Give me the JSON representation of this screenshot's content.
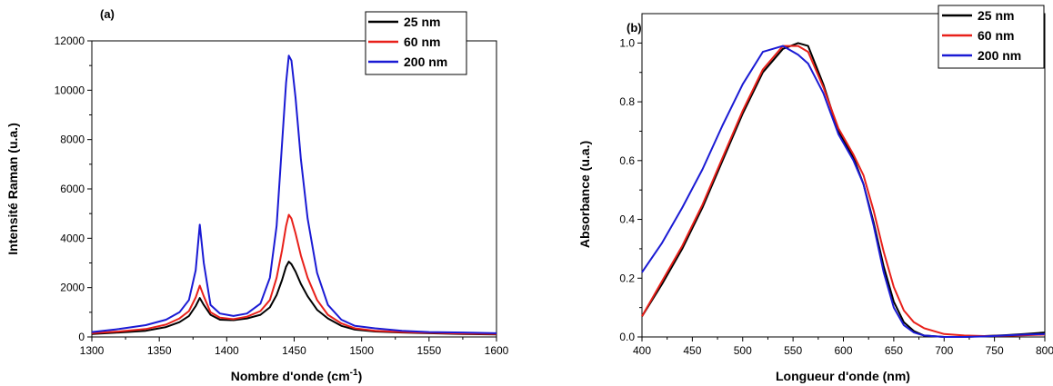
{
  "chart_data": [
    {
      "type": "line",
      "panel_label": "(a)",
      "xlabel": "Nombre d'onde (cm",
      "xlabel_sup": "-1",
      "xlabel_tail": ")",
      "ylabel": "Intensité Raman (u.a.)",
      "xlim": [
        1300,
        1600
      ],
      "ylim": [
        0,
        12000
      ],
      "xticks": [
        1300,
        1350,
        1400,
        1450,
        1500,
        1550,
        1600
      ],
      "yticks": [
        0,
        2000,
        4000,
        6000,
        8000,
        10000,
        12000
      ],
      "legend_position": "top-right",
      "series": [
        {
          "name": "25 nm",
          "color": "#000000",
          "x": [
            1300,
            1320,
            1340,
            1355,
            1365,
            1372,
            1377,
            1380,
            1383,
            1388,
            1395,
            1405,
            1415,
            1425,
            1432,
            1437,
            1441,
            1444,
            1446,
            1448,
            1451,
            1455,
            1460,
            1467,
            1475,
            1485,
            1495,
            1510,
            1530,
            1550,
            1575,
            1600
          ],
          "y": [
            120,
            180,
            250,
            400,
            600,
            850,
            1250,
            1580,
            1300,
            900,
            700,
            680,
            750,
            900,
            1200,
            1700,
            2300,
            2850,
            3050,
            2950,
            2650,
            2150,
            1650,
            1100,
            750,
            450,
            300,
            220,
            180,
            150,
            120,
            100
          ]
        },
        {
          "name": "60 nm",
          "color": "#e8201a",
          "x": [
            1300,
            1320,
            1340,
            1355,
            1365,
            1372,
            1377,
            1380,
            1383,
            1388,
            1395,
            1405,
            1415,
            1425,
            1432,
            1437,
            1441,
            1444,
            1446,
            1448,
            1451,
            1455,
            1460,
            1467,
            1475,
            1485,
            1495,
            1510,
            1530,
            1550,
            1575,
            1600
          ],
          "y": [
            150,
            220,
            320,
            500,
            750,
            1050,
            1600,
            2080,
            1650,
            1000,
            780,
            720,
            820,
            1050,
            1500,
            2400,
            3500,
            4500,
            4950,
            4800,
            4200,
            3300,
            2400,
            1500,
            900,
            550,
            350,
            250,
            200,
            170,
            140,
            120
          ]
        },
        {
          "name": "200 nm",
          "color": "#1a1ad4",
          "x": [
            1300,
            1320,
            1340,
            1355,
            1365,
            1372,
            1377,
            1380,
            1383,
            1388,
            1395,
            1405,
            1415,
            1425,
            1432,
            1437,
            1441,
            1444,
            1446,
            1448,
            1451,
            1455,
            1460,
            1467,
            1475,
            1485,
            1495,
            1510,
            1530,
            1550,
            1575,
            1600
          ],
          "y": [
            200,
            320,
            480,
            700,
            1000,
            1500,
            2700,
            4550,
            3000,
            1300,
            950,
            850,
            950,
            1350,
            2400,
            4500,
            7800,
            10300,
            11400,
            11200,
            9700,
            7200,
            4800,
            2600,
            1300,
            700,
            450,
            350,
            250,
            200,
            180,
            150
          ]
        }
      ]
    },
    {
      "type": "line",
      "panel_label": "(b)",
      "xlabel": "Longueur d'onde (nm)",
      "ylabel": "Absorbance (u.a.)",
      "xlim": [
        400,
        800
      ],
      "ylim": [
        0,
        1.1
      ],
      "xticks": [
        400,
        450,
        500,
        550,
        600,
        650,
        700,
        750,
        800
      ],
      "yticks": [
        0.0,
        0.2,
        0.4,
        0.6,
        0.8,
        1.0
      ],
      "ytick_labels": [
        "0.0",
        "0.2",
        "0.4",
        "0.6",
        "0.8",
        "1.0"
      ],
      "legend_position": "top-right",
      "series": [
        {
          "name": "25 nm",
          "color": "#000000",
          "x": [
            400,
            420,
            440,
            460,
            480,
            500,
            520,
            540,
            555,
            565,
            580,
            595,
            610,
            620,
            630,
            640,
            650,
            660,
            670,
            680,
            700,
            720,
            740,
            760,
            780,
            800
          ],
          "y": [
            0.07,
            0.18,
            0.3,
            0.44,
            0.6,
            0.76,
            0.9,
            0.98,
            1.0,
            0.99,
            0.86,
            0.7,
            0.61,
            0.52,
            0.39,
            0.24,
            0.12,
            0.05,
            0.02,
            0.005,
            0.0,
            0.0,
            0.003,
            0.006,
            0.01,
            0.015
          ]
        },
        {
          "name": "60 nm",
          "color": "#e8201a",
          "x": [
            400,
            420,
            440,
            460,
            480,
            500,
            520,
            540,
            555,
            565,
            580,
            595,
            610,
            620,
            630,
            640,
            650,
            660,
            670,
            680,
            700,
            720,
            740,
            760,
            780,
            800
          ],
          "y": [
            0.07,
            0.19,
            0.31,
            0.45,
            0.61,
            0.77,
            0.91,
            0.99,
            0.99,
            0.97,
            0.85,
            0.71,
            0.62,
            0.55,
            0.43,
            0.29,
            0.17,
            0.09,
            0.05,
            0.03,
            0.01,
            0.005,
            0.003,
            0.004,
            0.006,
            0.008
          ]
        },
        {
          "name": "200 nm",
          "color": "#1a1ad4",
          "x": [
            400,
            420,
            440,
            460,
            480,
            500,
            520,
            540,
            555,
            565,
            580,
            595,
            610,
            620,
            630,
            640,
            650,
            660,
            670,
            680,
            700,
            720,
            740,
            760,
            780,
            800
          ],
          "y": [
            0.22,
            0.32,
            0.44,
            0.57,
            0.72,
            0.86,
            0.97,
            0.99,
            0.96,
            0.93,
            0.83,
            0.69,
            0.6,
            0.52,
            0.38,
            0.22,
            0.1,
            0.04,
            0.015,
            0.005,
            0.0,
            0.0,
            0.002,
            0.005,
            0.008,
            0.01
          ]
        }
      ]
    }
  ]
}
